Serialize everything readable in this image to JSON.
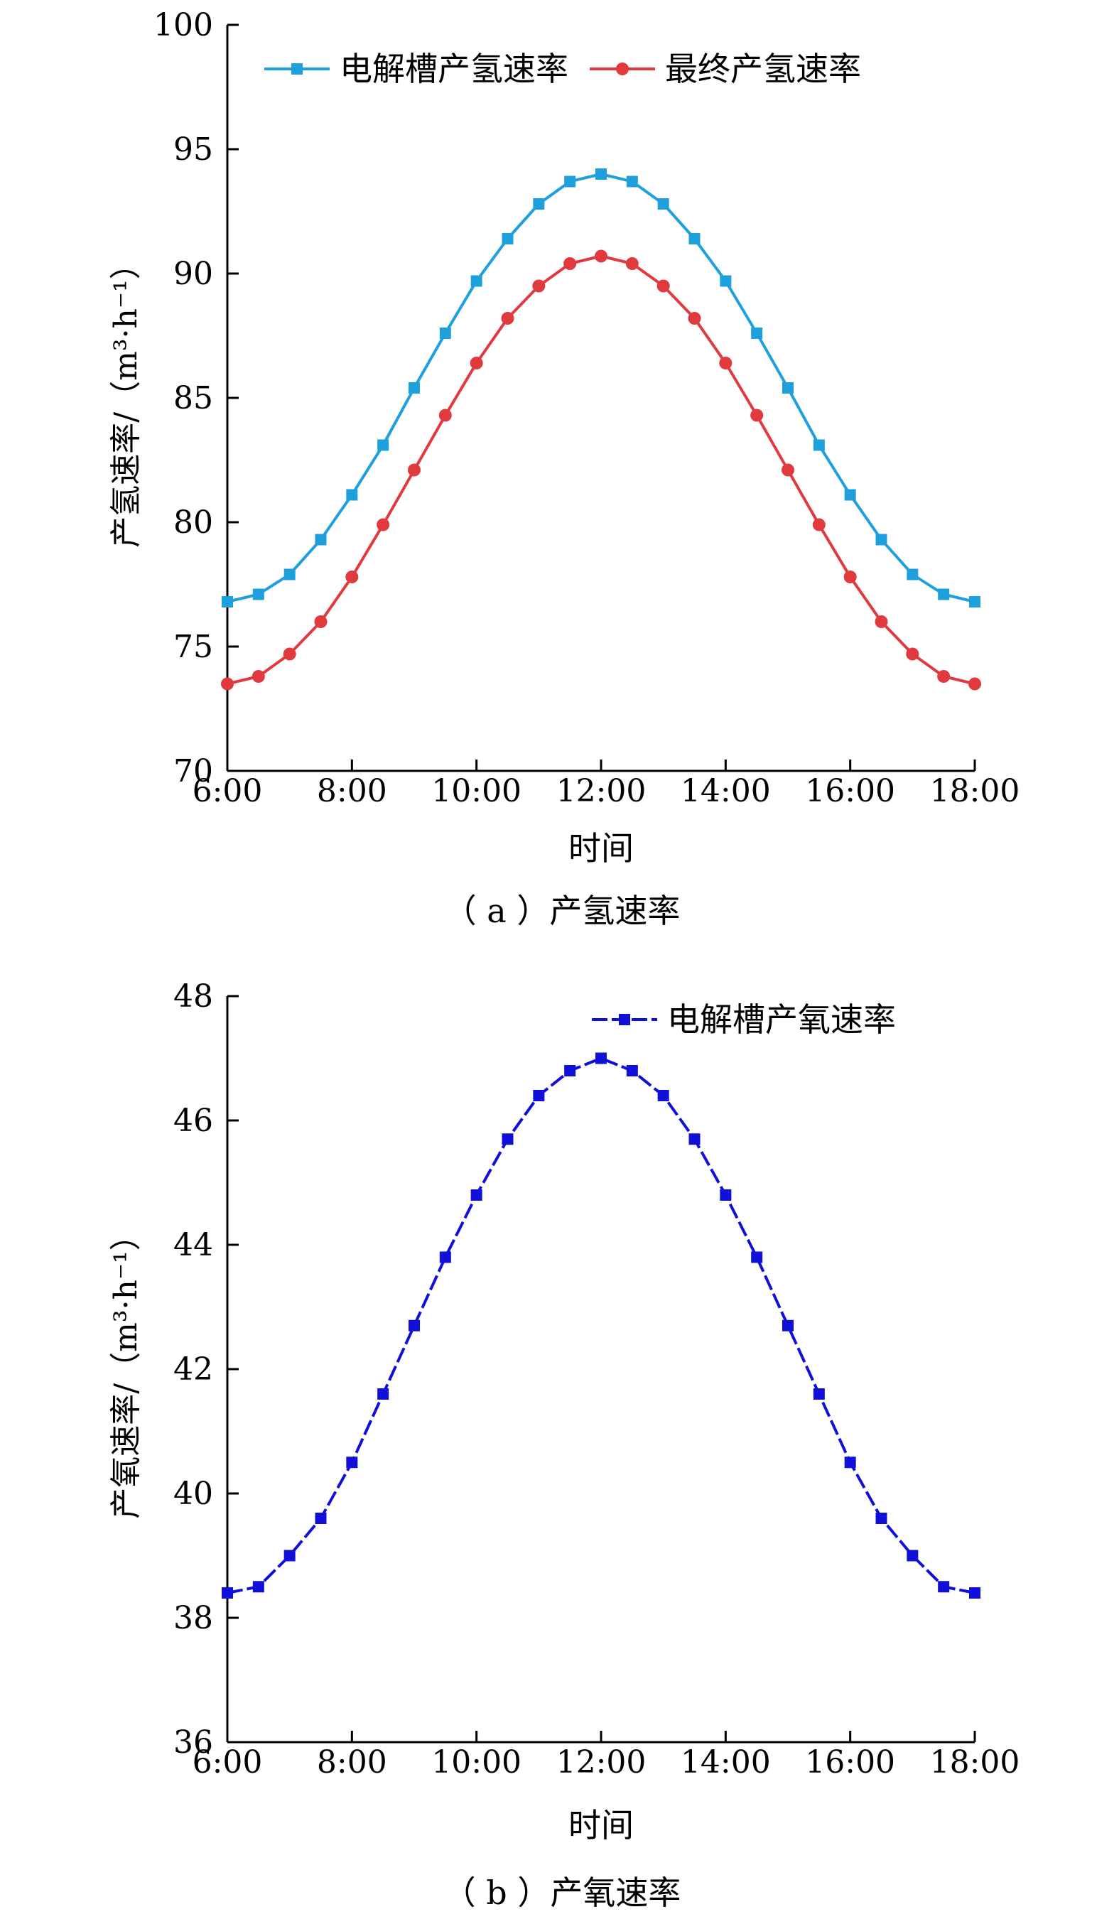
{
  "chart_data": [
    {
      "type": "line",
      "title": "",
      "caption": "（ a ）产氢速率",
      "xlabel": "时间",
      "ylabel": "产氢速率/（m³·h⁻¹）",
      "x": [
        "6:00",
        "6:30",
        "7:00",
        "7:30",
        "8:00",
        "8:30",
        "9:00",
        "9:30",
        "10:00",
        "10:30",
        "11:00",
        "11:30",
        "12:00",
        "12:30",
        "13:00",
        "13:30",
        "14:00",
        "14:30",
        "15:00",
        "15:30",
        "16:00",
        "16:30",
        "17:00",
        "17:30",
        "18:00"
      ],
      "xticks": [
        "6:00",
        "8:00",
        "10:00",
        "12:00",
        "14:00",
        "16:00",
        "18:00"
      ],
      "ylim": [
        70,
        100
      ],
      "yticks": [
        70,
        75,
        80,
        85,
        90,
        95,
        100
      ],
      "grid": false,
      "legend_position": "top",
      "series": [
        {
          "name": "电解槽产氢速率",
          "color": "#1ea0dc",
          "marker": "square",
          "line_style": "solid",
          "values": [
            76.8,
            77.1,
            77.9,
            79.3,
            81.1,
            83.1,
            85.4,
            87.6,
            89.7,
            91.4,
            92.8,
            93.7,
            94.0,
            93.7,
            92.8,
            91.4,
            89.7,
            87.6,
            85.4,
            83.1,
            81.1,
            79.3,
            77.9,
            77.1,
            76.8
          ]
        },
        {
          "name": "最终产氢速率",
          "color": "#e0393e",
          "marker": "circle",
          "line_style": "solid",
          "values": [
            73.5,
            73.8,
            74.7,
            76.0,
            77.8,
            79.9,
            82.1,
            84.3,
            86.4,
            88.2,
            89.5,
            90.4,
            90.7,
            90.4,
            89.5,
            88.2,
            86.4,
            84.3,
            82.1,
            79.9,
            77.8,
            76.0,
            74.7,
            73.8,
            73.5
          ]
        }
      ]
    },
    {
      "type": "line",
      "title": "",
      "caption": "（ b ）产氧速率",
      "xlabel": "时间",
      "ylabel": "产氧速率/（m³·h⁻¹）",
      "x": [
        "6:00",
        "6:30",
        "7:00",
        "7:30",
        "8:00",
        "8:30",
        "9:00",
        "9:30",
        "10:00",
        "10:30",
        "11:00",
        "11:30",
        "12:00",
        "12:30",
        "13:00",
        "13:30",
        "14:00",
        "14:30",
        "15:00",
        "15:30",
        "16:00",
        "16:30",
        "17:00",
        "17:30",
        "18:00"
      ],
      "xticks": [
        "6:00",
        "8:00",
        "10:00",
        "12:00",
        "14:00",
        "16:00",
        "18:00"
      ],
      "ylim": [
        36,
        48
      ],
      "yticks": [
        36,
        38,
        40,
        42,
        44,
        46,
        48
      ],
      "grid": false,
      "legend_position": "top-right",
      "series": [
        {
          "name": "电解槽产氧速率",
          "color": "#1010d8",
          "marker": "square",
          "line_style": "dashed",
          "values": [
            38.4,
            38.5,
            39.0,
            39.6,
            40.5,
            41.6,
            42.7,
            43.8,
            44.8,
            45.7,
            46.4,
            46.8,
            47.0,
            46.8,
            46.4,
            45.7,
            44.8,
            43.8,
            42.7,
            41.6,
            40.5,
            39.6,
            39.0,
            38.5,
            38.4
          ]
        }
      ]
    }
  ]
}
